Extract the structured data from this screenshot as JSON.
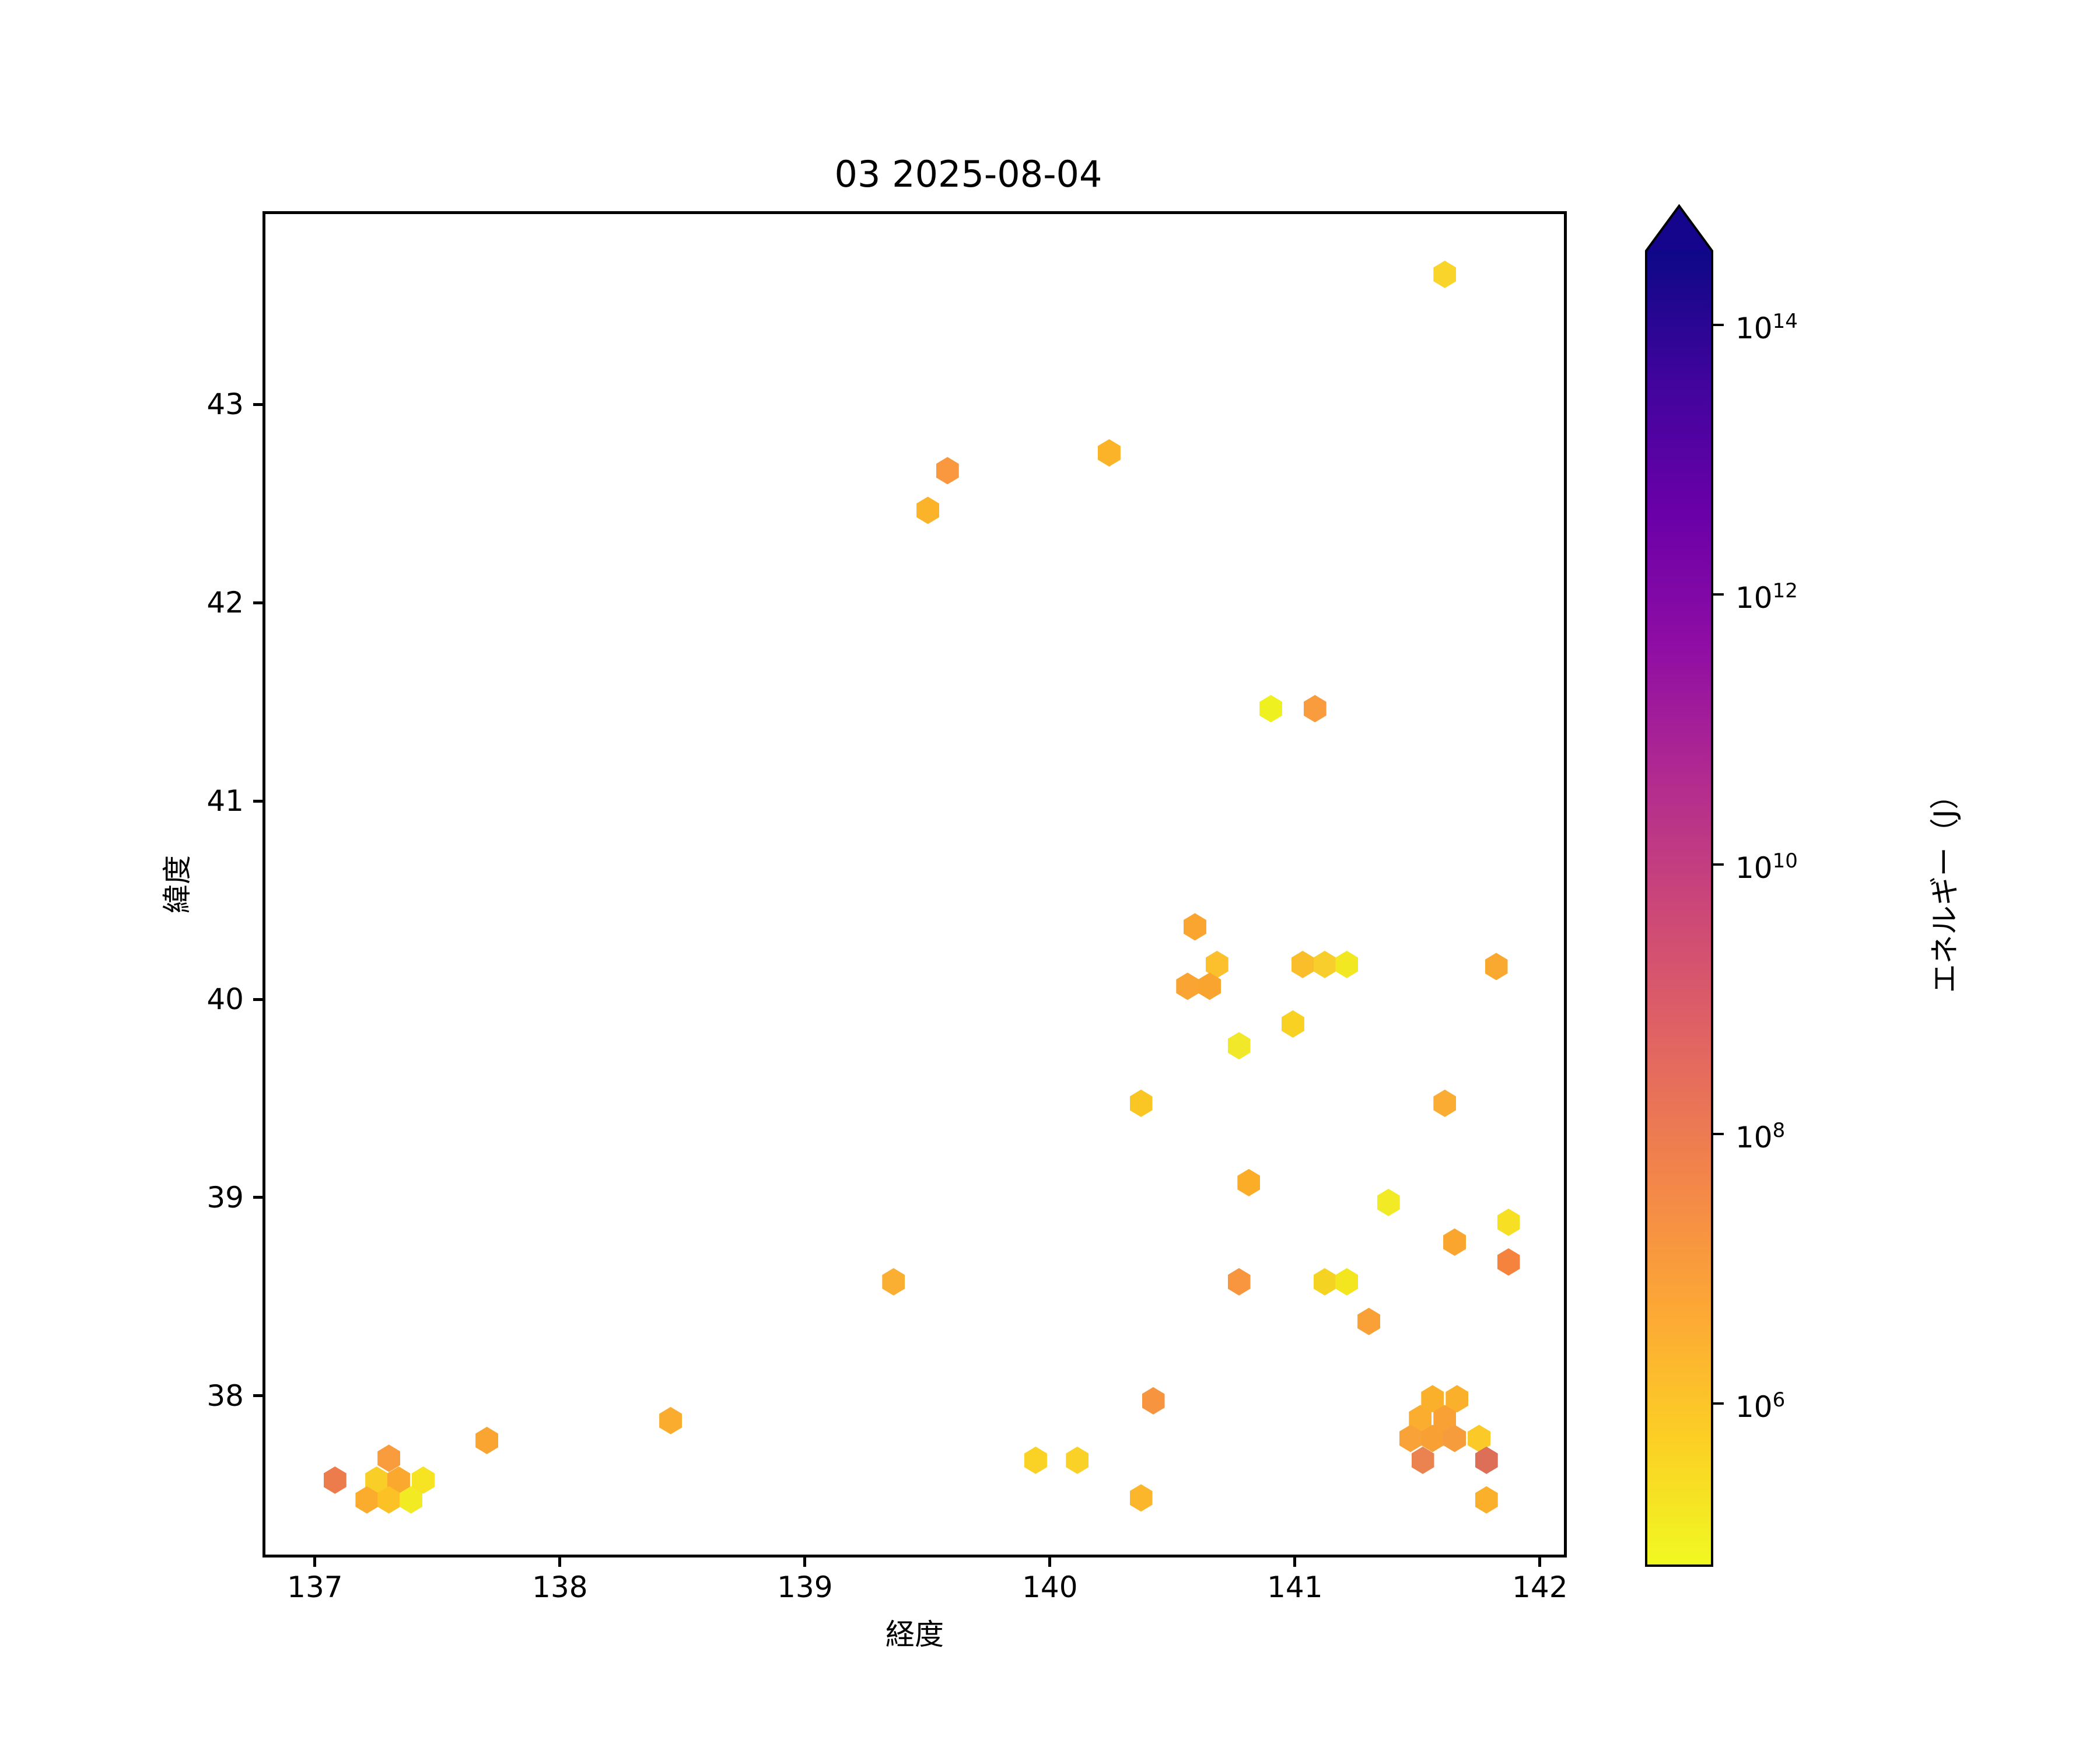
{
  "title": "03 2025-08-04",
  "chart_data": {
    "type": "scatter",
    "subtype": "hexbin-marker-map",
    "title": "03 2025-08-04",
    "xlabel": "経度",
    "ylabel": "緯度",
    "xlim": [
      136.786,
      142.11
    ],
    "ylim": [
      37.185,
      43.974
    ],
    "xticks": [
      137,
      138,
      139,
      140,
      141,
      142
    ],
    "yticks": [
      38,
      39,
      40,
      41,
      42,
      43
    ],
    "grid": false,
    "legend": "none (colorbar only)",
    "colorbar": {
      "label": "エネルギー（J）",
      "scale": "log",
      "ticks": [
        "10^6",
        "10^8",
        "10^10",
        "10^12",
        "10^14"
      ],
      "tick_exponents": [
        6,
        8,
        10,
        12,
        14
      ],
      "log_range": [
        4.79,
        14.55
      ],
      "extend": "max",
      "colormap": "plasma reversed (yellow = low energy, dark navy = high energy)",
      "gradient_top_to_bottom": [
        "#0d0887",
        "#41049d",
        "#6a00a8",
        "#8f0da4",
        "#b12a90",
        "#cc4778",
        "#e16462",
        "#f2844b",
        "#fca636",
        "#fcce25",
        "#f0f921"
      ],
      "over_color": "#14058c"
    },
    "points": [
      {
        "lon": 141.6,
        "lat": 43.67,
        "c": "#F9D42A",
        "e": 400000.0
      },
      {
        "lon": 139.57,
        "lat": 42.68,
        "c": "#F9983F",
        "e": 10000000.0
      },
      {
        "lon": 139.49,
        "lat": 42.48,
        "c": "#FBB42A",
        "e": 2000000.0
      },
      {
        "lon": 140.23,
        "lat": 42.77,
        "c": "#FBB42A",
        "e": 2000000.0
      },
      {
        "lon": 140.89,
        "lat": 41.48,
        "c": "#EFF020",
        "e": 120000.0
      },
      {
        "lon": 141.07,
        "lat": 41.48,
        "c": "#F99C3E",
        "e": 10000000.0
      },
      {
        "lon": 140.58,
        "lat": 40.38,
        "c": "#FAA52F",
        "e": 7000000.0
      },
      {
        "lon": 140.67,
        "lat": 40.19,
        "c": "#FBC02B",
        "e": 1000000.0
      },
      {
        "lon": 140.55,
        "lat": 40.08,
        "c": "#F9A433",
        "e": 7000000.0
      },
      {
        "lon": 140.64,
        "lat": 40.08,
        "c": "#F9A42F",
        "e": 7000000.0
      },
      {
        "lon": 141.02,
        "lat": 40.19,
        "c": "#FBBE2B",
        "e": 1000000.0
      },
      {
        "lon": 141.11,
        "lat": 40.19,
        "c": "#F7CE2B",
        "e": 600000.0
      },
      {
        "lon": 141.2,
        "lat": 40.19,
        "c": "#F1E822",
        "e": 150000.0
      },
      {
        "lon": 141.81,
        "lat": 40.18,
        "c": "#FAA930",
        "e": 5000000.0
      },
      {
        "lon": 140.98,
        "lat": 39.89,
        "c": "#F9D122",
        "e": 400000.0
      },
      {
        "lon": 140.76,
        "lat": 39.78,
        "c": "#F1E829",
        "e": 150000.0
      },
      {
        "lon": 140.36,
        "lat": 39.49,
        "c": "#F9C623",
        "e": 600000.0
      },
      {
        "lon": 141.6,
        "lat": 39.49,
        "c": "#FAAC33",
        "e": 4000000.0
      },
      {
        "lon": 140.8,
        "lat": 39.09,
        "c": "#FBAD28",
        "e": 4000000.0
      },
      {
        "lon": 141.37,
        "lat": 38.99,
        "c": "#F1EA25",
        "e": 150000.0
      },
      {
        "lon": 141.64,
        "lat": 38.79,
        "c": "#FAA62E",
        "e": 7000000.0
      },
      {
        "lon": 141.86,
        "lat": 38.89,
        "c": "#F7DF23",
        "e": 300000.0
      },
      {
        "lon": 141.86,
        "lat": 38.69,
        "c": "#F5833E",
        "e": 50000000.0
      },
      {
        "lon": 139.35,
        "lat": 38.59,
        "c": "#FAAE32",
        "e": 4000000.0
      },
      {
        "lon": 140.76,
        "lat": 38.59,
        "c": "#F8953F",
        "e": 20000000.0
      },
      {
        "lon": 141.11,
        "lat": 38.59,
        "c": "#F5D322",
        "e": 400000.0
      },
      {
        "lon": 141.2,
        "lat": 38.59,
        "c": "#F3E61F",
        "e": 200000.0
      },
      {
        "lon": 141.29,
        "lat": 38.39,
        "c": "#F9A137",
        "e": 7000000.0
      },
      {
        "lon": 138.44,
        "lat": 37.89,
        "c": "#FAAC2F",
        "e": 4000000.0
      },
      {
        "lon": 140.41,
        "lat": 37.99,
        "c": "#F6943F",
        "e": 20000000.0
      },
      {
        "lon": 139.93,
        "lat": 37.69,
        "c": "#FAD225",
        "e": 400000.0
      },
      {
        "lon": 140.1,
        "lat": 37.69,
        "c": "#FAD126",
        "e": 400000.0
      },
      {
        "lon": 140.36,
        "lat": 37.5,
        "c": "#FBB62B",
        "e": 2000000.0
      },
      {
        "lon": 137.07,
        "lat": 37.59,
        "c": "#ED7C4D",
        "e": 100000000.0
      },
      {
        "lon": 137.29,
        "lat": 37.7,
        "c": "#F89C3D",
        "e": 10000000.0
      },
      {
        "lon": 137.24,
        "lat": 37.59,
        "c": "#F8CE27",
        "e": 600000.0
      },
      {
        "lon": 137.33,
        "lat": 37.59,
        "c": "#FAA92E",
        "e": 5000000.0
      },
      {
        "lon": 137.43,
        "lat": 37.59,
        "c": "#F6E322",
        "e": 200000.0
      },
      {
        "lon": 137.2,
        "lat": 37.49,
        "c": "#FBAC2D",
        "e": 4000000.0
      },
      {
        "lon": 137.29,
        "lat": 37.49,
        "c": "#FBC125",
        "e": 1000000.0
      },
      {
        "lon": 137.38,
        "lat": 37.49,
        "c": "#F2EA23",
        "e": 150000.0
      },
      {
        "lon": 137.69,
        "lat": 37.79,
        "c": "#FAA432",
        "e": 7000000.0
      },
      {
        "lon": 141.55,
        "lat": 38.0,
        "c": "#FBB02C",
        "e": 2000000.0
      },
      {
        "lon": 141.65,
        "lat": 38.0,
        "c": "#FBB02C",
        "e": 2000000.0
      },
      {
        "lon": 141.5,
        "lat": 37.9,
        "c": "#FAAD2E",
        "e": 4000000.0
      },
      {
        "lon": 141.6,
        "lat": 37.9,
        "c": "#F9A134",
        "e": 7000000.0
      },
      {
        "lon": 141.46,
        "lat": 37.8,
        "c": "#F9A238",
        "e": 7000000.0
      },
      {
        "lon": 141.55,
        "lat": 37.8,
        "c": "#F9A034",
        "e": 7000000.0
      },
      {
        "lon": 141.64,
        "lat": 37.8,
        "c": "#F79C3C",
        "e": 10000000.0
      },
      {
        "lon": 141.74,
        "lat": 37.8,
        "c": "#FBCA28",
        "e": 600000.0
      },
      {
        "lon": 141.51,
        "lat": 37.69,
        "c": "#EB8350",
        "e": 80000000.0
      },
      {
        "lon": 141.77,
        "lat": 37.69,
        "c": "#DD6E57",
        "e": 300000000.0
      },
      {
        "lon": 141.77,
        "lat": 37.49,
        "c": "#FBB02B",
        "e": 2000000.0
      }
    ]
  }
}
